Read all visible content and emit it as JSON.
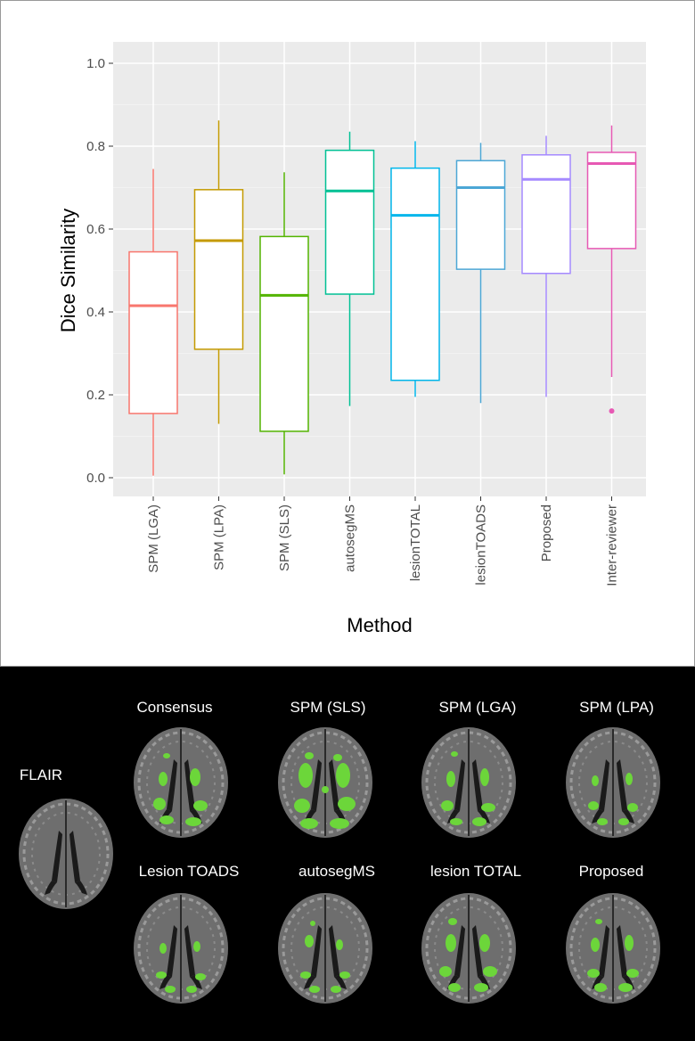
{
  "chart_data": {
    "type": "box",
    "xlabel": "Method",
    "ylabel": "Dice Similarity",
    "ylim": [
      0,
      1.0
    ],
    "yticks": [
      "0.0",
      "0.2",
      "0.4",
      "0.6",
      "0.8",
      "1.0"
    ],
    "grid": true,
    "categories": [
      "SPM (LGA)",
      "SPM (LPA)",
      "SPM (SLS)",
      "autosegMS",
      "lesionTOTAL",
      "lesionTOADS",
      "Proposed",
      "Inter-reviewer"
    ],
    "series": [
      {
        "name": "SPM (LGA)",
        "color": "#f8766d",
        "min": 0.005,
        "q1": 0.155,
        "median": 0.415,
        "q3": 0.545,
        "max": 0.745,
        "outliers": []
      },
      {
        "name": "SPM (LPA)",
        "color": "#c49a00",
        "min": 0.13,
        "q1": 0.31,
        "median": 0.572,
        "q3": 0.695,
        "max": 0.862,
        "outliers": []
      },
      {
        "name": "SPM (SLS)",
        "color": "#53b400",
        "min": 0.008,
        "q1": 0.112,
        "median": 0.44,
        "q3": 0.582,
        "max": 0.737,
        "outliers": []
      },
      {
        "name": "autosegMS",
        "color": "#00c094",
        "min": 0.173,
        "q1": 0.443,
        "median": 0.692,
        "q3": 0.79,
        "max": 0.835,
        "outliers": []
      },
      {
        "name": "lesionTOTAL",
        "color": "#00b6eb",
        "min": 0.195,
        "q1": 0.235,
        "median": 0.633,
        "q3": 0.747,
        "max": 0.812,
        "outliers": []
      },
      {
        "name": "lesionTOADS",
        "color": "#4ca7d6",
        "min": 0.18,
        "q1": 0.503,
        "median": 0.7,
        "q3": 0.765,
        "max": 0.808,
        "outliers": []
      },
      {
        "name": "Proposed",
        "color": "#a58aff",
        "min": 0.195,
        "q1": 0.493,
        "median": 0.72,
        "q3": 0.779,
        "max": 0.825,
        "outliers": []
      },
      {
        "name": "Inter-reviewer",
        "color": "#e759b4",
        "min": 0.243,
        "q1": 0.553,
        "median": 0.758,
        "q3": 0.785,
        "max": 0.85,
        "outliers": [
          0.161
        ]
      }
    ]
  },
  "images": {
    "flair_label": "FLAIR",
    "row1": [
      "Consensus",
      "SPM (SLS)",
      "SPM (LGA)",
      "SPM (LPA)"
    ],
    "row2": [
      "Lesion TOADS",
      "autosegMS",
      "lesion TOTAL",
      "Proposed"
    ],
    "lesion_color": "#6cd63a"
  }
}
